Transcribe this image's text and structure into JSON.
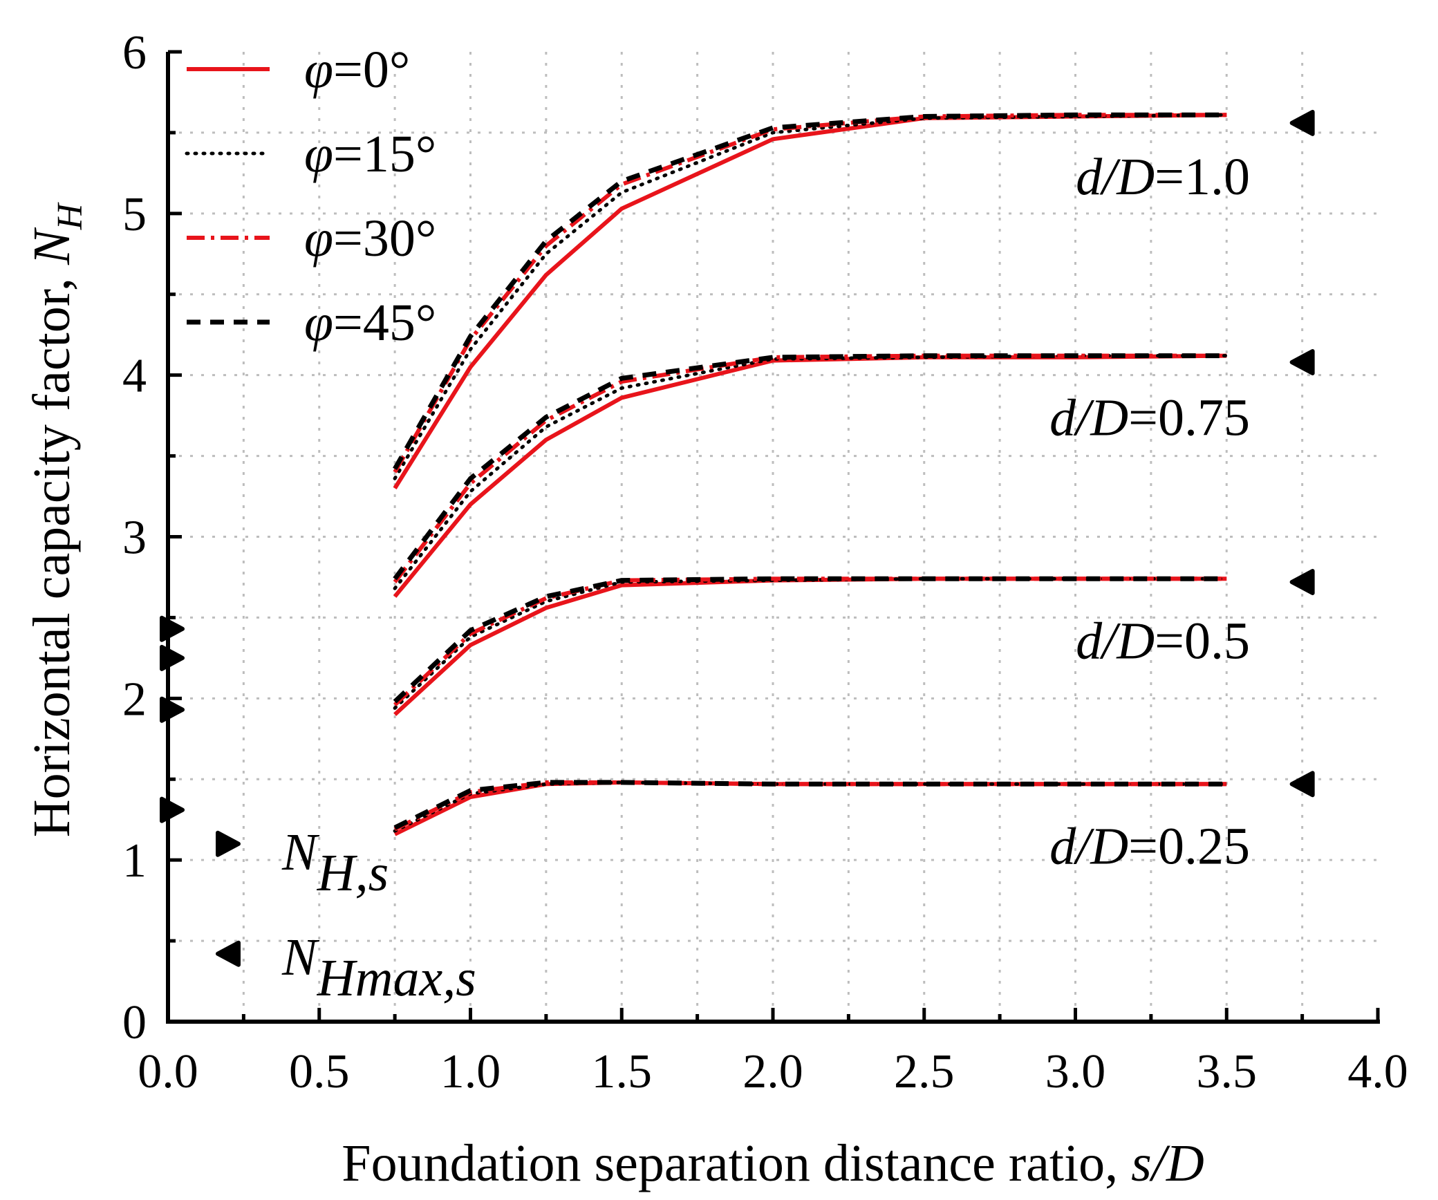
{
  "chart_data": {
    "type": "line",
    "xlabel": {
      "text": "Foundation separation distance ratio, ",
      "italic": "s/D"
    },
    "ylabel": {
      "text": "Horizontal capacity factor, ",
      "italic": "N",
      "subscript": "H"
    },
    "xlim": [
      0,
      4
    ],
    "ylim": [
      0,
      6
    ],
    "xticks": [
      "0.0",
      "0.5",
      "1.0",
      "1.5",
      "2.0",
      "2.5",
      "3.0",
      "3.5",
      "4.0"
    ],
    "yticks": [
      "0",
      "1",
      "2",
      "3",
      "4",
      "5",
      "6"
    ],
    "grid": true,
    "x": [
      0.75,
      1.0,
      1.25,
      1.5,
      2.0,
      2.5,
      3.0,
      3.5
    ],
    "legend": [
      {
        "label": "φ=0°",
        "color": "#e8141b",
        "style": "solid"
      },
      {
        "label": "φ=15°",
        "color": "#000000",
        "style": "dotted"
      },
      {
        "label": "φ=30°",
        "color": "#e8141b",
        "style": "dashdot"
      },
      {
        "label": "φ=45°",
        "color": "#000000",
        "style": "dashed"
      }
    ],
    "groups": [
      {
        "label": "d/D=1.0",
        "series": [
          {
            "name": "φ=0°",
            "values": [
              3.3,
              4.05,
              4.62,
              5.03,
              5.46,
              5.59,
              5.6,
              5.61
            ]
          },
          {
            "name": "φ=15°",
            "values": [
              3.36,
              4.16,
              4.75,
              5.13,
              5.5,
              5.59,
              5.6,
              5.61
            ]
          },
          {
            "name": "φ=30°",
            "values": [
              3.4,
              4.22,
              4.8,
              5.18,
              5.52,
              5.6,
              5.61,
              5.61
            ]
          },
          {
            "name": "φ=45°",
            "values": [
              3.42,
              4.24,
              4.83,
              5.2,
              5.53,
              5.6,
              5.61,
              5.61
            ]
          }
        ],
        "nhmax": 5.56
      },
      {
        "label": "d/D=0.75",
        "series": [
          {
            "name": "φ=0°",
            "values": [
              2.63,
              3.2,
              3.6,
              3.86,
              4.09,
              4.11,
              4.11,
              4.12
            ]
          },
          {
            "name": "φ=15°",
            "values": [
              2.68,
              3.28,
              3.68,
              3.92,
              4.1,
              4.11,
              4.12,
              4.12
            ]
          },
          {
            "name": "φ=30°",
            "values": [
              2.72,
              3.33,
              3.72,
              3.96,
              4.11,
              4.12,
              4.12,
              4.12
            ]
          },
          {
            "name": "φ=45°",
            "values": [
              2.74,
              3.36,
              3.74,
              3.98,
              4.11,
              4.12,
              4.12,
              4.12
            ]
          }
        ],
        "nhmax": 4.08
      },
      {
        "label": "d/D=0.5",
        "series": [
          {
            "name": "φ=0°",
            "values": [
              1.9,
              2.33,
              2.56,
              2.7,
              2.73,
              2.74,
              2.74,
              2.74
            ]
          },
          {
            "name": "φ=15°",
            "values": [
              1.94,
              2.38,
              2.6,
              2.72,
              2.73,
              2.74,
              2.74,
              2.74
            ]
          },
          {
            "name": "φ=30°",
            "values": [
              1.96,
              2.4,
              2.62,
              2.73,
              2.74,
              2.74,
              2.74,
              2.74
            ]
          },
          {
            "name": "φ=45°",
            "values": [
              1.98,
              2.42,
              2.63,
              2.73,
              2.74,
              2.74,
              2.74,
              2.74
            ]
          }
        ],
        "nhmax": 2.72
      },
      {
        "label": "d/D=0.25",
        "series": [
          {
            "name": "φ=0°",
            "values": [
              1.16,
              1.39,
              1.47,
              1.48,
              1.47,
              1.47,
              1.47,
              1.47
            ]
          },
          {
            "name": "φ=15°",
            "values": [
              1.18,
              1.41,
              1.47,
              1.48,
              1.47,
              1.47,
              1.47,
              1.47
            ]
          },
          {
            "name": "φ=30°",
            "values": [
              1.19,
              1.42,
              1.48,
              1.48,
              1.47,
              1.47,
              1.47,
              1.47
            ]
          },
          {
            "name": "φ=45°",
            "values": [
              1.2,
              1.43,
              1.48,
              1.48,
              1.47,
              1.47,
              1.47,
              1.47
            ]
          }
        ],
        "nhmax": 1.47
      }
    ],
    "nhs_values": [
      2.43,
      2.25,
      1.93,
      1.31
    ],
    "marker_legend": [
      {
        "base": "N",
        "sub": "H,s",
        "pointing": "right",
        "symbol_y": 1.1
      },
      {
        "base": "N",
        "sub": "Hmax,s",
        "pointing": "left",
        "symbol_y": 0.42
      }
    ]
  }
}
